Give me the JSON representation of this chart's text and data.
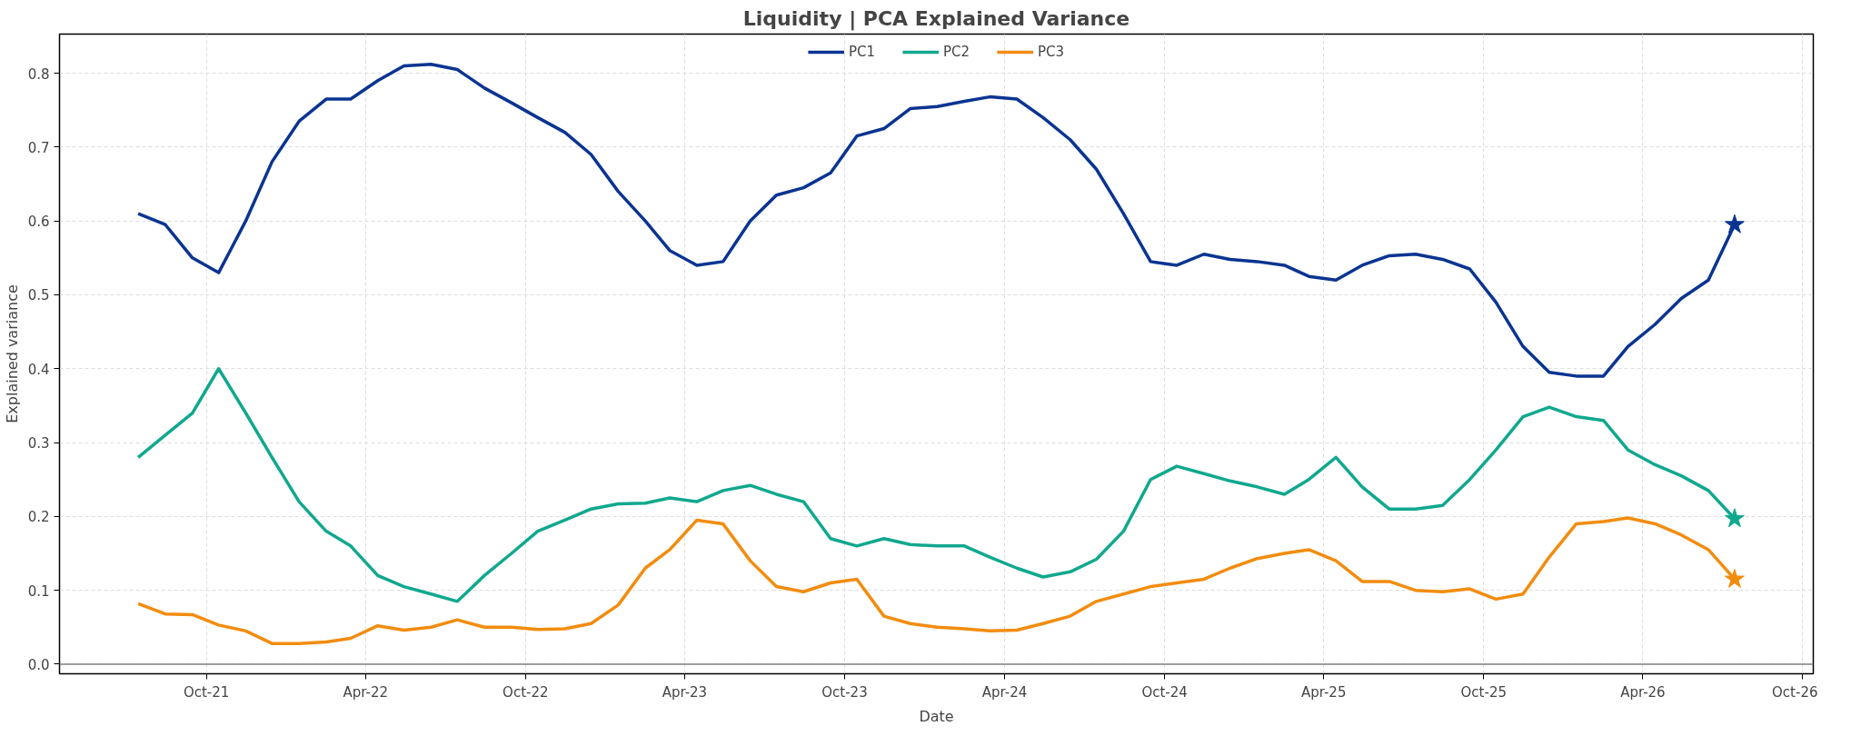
{
  "chart_data": {
    "type": "line",
    "title": "Liquidity | PCA Explained Variance",
    "xlabel": "Date",
    "ylabel": "Explained variance",
    "x": [
      "2021-07-15",
      "2021-08-15",
      "2021-09-15",
      "2021-10-15",
      "2021-11-15",
      "2021-12-15",
      "2022-01-15",
      "2022-02-15",
      "2022-03-15",
      "2022-04-15",
      "2022-05-15",
      "2022-06-15",
      "2022-07-15",
      "2022-08-15",
      "2022-09-15",
      "2022-10-15",
      "2022-11-15",
      "2022-12-15",
      "2023-01-15",
      "2023-02-15",
      "2023-03-15",
      "2023-04-15",
      "2023-05-15",
      "2023-06-15",
      "2023-07-15",
      "2023-08-15",
      "2023-09-15",
      "2023-10-15",
      "2023-11-15",
      "2023-12-15",
      "2024-01-15",
      "2024-02-15",
      "2024-03-15",
      "2024-04-15",
      "2024-05-15",
      "2024-06-15",
      "2024-07-15",
      "2024-08-15",
      "2024-09-15",
      "2024-10-15",
      "2024-11-15",
      "2024-12-15",
      "2025-01-15",
      "2025-02-15",
      "2025-03-15",
      "2025-04-15",
      "2025-05-15",
      "2025-06-15",
      "2025-07-15",
      "2025-08-15",
      "2025-09-15",
      "2025-10-15",
      "2025-11-15",
      "2025-12-15",
      "2026-01-15",
      "2026-02-15",
      "2026-03-15",
      "2026-04-15",
      "2026-05-15",
      "2026-06-15",
      "2026-07-15"
    ],
    "series": [
      {
        "name": "PC1",
        "color": "#0a3491",
        "values": [
          0.61,
          0.595,
          0.55,
          0.53,
          0.6,
          0.68,
          0.735,
          0.765,
          0.765,
          0.79,
          0.81,
          0.812,
          0.805,
          0.78,
          0.76,
          0.74,
          0.72,
          0.69,
          0.64,
          0.6,
          0.56,
          0.54,
          0.545,
          0.6,
          0.635,
          0.645,
          0.665,
          0.715,
          0.725,
          0.752,
          0.755,
          0.762,
          0.768,
          0.765,
          0.74,
          0.71,
          0.67,
          0.61,
          0.545,
          0.54,
          0.555,
          0.548,
          0.545,
          0.54,
          0.525,
          0.52,
          0.54,
          0.553,
          0.555,
          0.548,
          0.535,
          0.49,
          0.43,
          0.395,
          0.39,
          0.39,
          0.43,
          0.46,
          0.495,
          0.52,
          0.595
        ]
      },
      {
        "name": "PC2",
        "color": "#10a88e",
        "values": [
          0.28,
          0.31,
          0.34,
          0.4,
          0.34,
          0.28,
          0.22,
          0.18,
          0.16,
          0.12,
          0.105,
          0.095,
          0.085,
          0.12,
          0.15,
          0.18,
          0.195,
          0.21,
          0.217,
          0.218,
          0.225,
          0.22,
          0.235,
          0.242,
          0.23,
          0.22,
          0.17,
          0.16,
          0.17,
          0.162,
          0.16,
          0.16,
          0.145,
          0.13,
          0.118,
          0.125,
          0.142,
          0.18,
          0.25,
          0.268,
          0.258,
          0.248,
          0.24,
          0.23,
          0.25,
          0.28,
          0.24,
          0.21,
          0.21,
          0.215,
          0.25,
          0.29,
          0.335,
          0.348,
          0.335,
          0.33,
          0.29,
          0.27,
          0.255,
          0.235,
          0.197
        ]
      },
      {
        "name": "PC3",
        "color": "#f28c0f",
        "values": [
          0.082,
          0.068,
          0.067,
          0.053,
          0.045,
          0.028,
          0.028,
          0.03,
          0.035,
          0.052,
          0.046,
          0.05,
          0.06,
          0.05,
          0.05,
          0.047,
          0.048,
          0.055,
          0.08,
          0.13,
          0.155,
          0.195,
          0.19,
          0.14,
          0.105,
          0.098,
          0.11,
          0.115,
          0.065,
          0.055,
          0.05,
          0.048,
          0.045,
          0.046,
          0.055,
          0.065,
          0.085,
          0.095,
          0.105,
          0.11,
          0.115,
          0.13,
          0.143,
          0.15,
          0.155,
          0.14,
          0.112,
          0.112,
          0.1,
          0.098,
          0.102,
          0.088,
          0.095,
          0.145,
          0.19,
          0.193,
          0.198,
          0.19,
          0.175,
          0.155,
          0.115
        ]
      },
      {
        "type": "scatter",
        "marker": "star",
        "color": "#0a3491",
        "x": [
          "2026-07-15"
        ],
        "values": [
          0.595
        ]
      },
      {
        "type": "scatter",
        "marker": "star",
        "color": "#10a88e",
        "x": [
          "2026-07-15"
        ],
        "values": [
          0.197
        ]
      },
      {
        "type": "scatter",
        "marker": "star",
        "color": "#f28c0f",
        "x": [
          "2026-07-15"
        ],
        "values": [
          0.115
        ]
      }
    ],
    "xlim": [
      "2021-04-16",
      "2026-10-13"
    ],
    "xticks": [
      {
        "value": "2021-10-01",
        "label": "Oct-21"
      },
      {
        "value": "2022-04-01",
        "label": "Apr-22"
      },
      {
        "value": "2022-10-01",
        "label": "Oct-22"
      },
      {
        "value": "2023-04-01",
        "label": "Apr-23"
      },
      {
        "value": "2023-10-01",
        "label": "Oct-23"
      },
      {
        "value": "2024-04-01",
        "label": "Apr-24"
      },
      {
        "value": "2024-10-01",
        "label": "Oct-24"
      },
      {
        "value": "2025-04-01",
        "label": "Apr-25"
      },
      {
        "value": "2025-10-01",
        "label": "Oct-25"
      },
      {
        "value": "2026-04-01",
        "label": "Apr-26"
      },
      {
        "value": "2026-10-01",
        "label": "Oct-26"
      }
    ],
    "ylim": [
      -0.013,
      0.853
    ],
    "yticks": [
      {
        "value": 0,
        "label": "0.0"
      },
      0.1,
      0.2,
      0.3,
      0.4,
      0.5,
      0.6,
      0.7,
      0.8
    ],
    "ref_lines": [
      {
        "axis": "y",
        "value": 0,
        "color": "#808080"
      }
    ],
    "grid": true,
    "legend": "top",
    "line_style": "solid"
  }
}
